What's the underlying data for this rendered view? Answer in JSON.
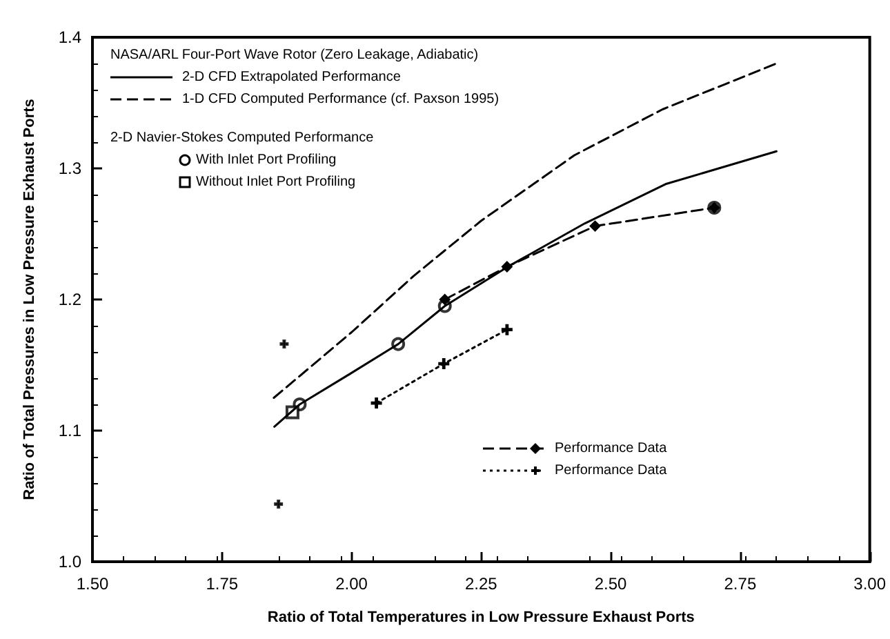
{
  "chart_data": {
    "type": "line",
    "xlabel": "Ratio of Total Temperatures in Low Pressure Exhaust Ports",
    "ylabel": "Ratio of Total Pressures in Low Pressure Exhaust Ports",
    "legend_title": "NASA/ARL Four-Port Wave Rotor (Zero Leakage, Adiabatic)",
    "annotations": [
      "2-D Navier-Stokes Computed Performance"
    ],
    "xlim": [
      1.5,
      3.0
    ],
    "xticks": [
      {
        "value": 1.5,
        "label": "1.50"
      },
      1.75,
      {
        "value": 2,
        "label": "2.00"
      },
      2.25,
      {
        "value": 2.5,
        "label": "2.50"
      },
      2.75,
      {
        "value": 3,
        "label": "3.00"
      }
    ],
    "ylim": [
      1.0,
      1.4
    ],
    "yticks": [
      {
        "value": 1,
        "label": "1.0"
      },
      1.1,
      1.2,
      1.3,
      1.4
    ],
    "grid": false,
    "legend": "top left",
    "series": [
      {
        "name": "2-D CFD Extrapolated Performance",
        "color": "#000000",
        "line_style": "solid",
        "x": [
          1.851,
          1.9,
          2.0,
          2.09,
          2.18,
          2.306,
          2.45,
          2.606,
          2.82
        ],
        "values": [
          1.103,
          1.12,
          1.144,
          1.166,
          1.195,
          1.226,
          1.258,
          1.288,
          1.313
        ]
      },
      {
        "name": "1-D CFD Computed Performance (cf. Paxson 1995)",
        "color": "#000000",
        "line_style": "dashed",
        "x": [
          1.85,
          2.0,
          2.12,
          2.25,
          2.43,
          2.6,
          2.82
        ],
        "values": [
          1.125,
          1.175,
          1.218,
          1.26,
          1.31,
          1.345,
          1.38
        ]
      },
      {
        "name": "With Inlet Port Profiling",
        "type": "scatter",
        "color": "#000000",
        "marker": "circle",
        "x": [
          1.9,
          2.09,
          2.18,
          2.7
        ],
        "values": [
          1.12,
          1.166,
          1.195,
          1.27
        ]
      },
      {
        "name": "Without Inlet Port Profiling",
        "type": "scatter",
        "color": "#000000",
        "marker": "square",
        "x": [
          1.886
        ],
        "values": [
          1.114
        ]
      },
      {
        "name": "Performance Data",
        "color": "#000000",
        "line_style": "dashed",
        "marker": "diamond",
        "x": [
          2.18,
          2.3,
          2.47,
          2.7
        ],
        "values": [
          1.2,
          1.225,
          1.256,
          1.27
        ]
      },
      {
        "name": "Performance Data",
        "color": "#000000",
        "line_style": "dotted",
        "marker": "cross",
        "x": [
          2.048,
          2.178,
          2.3
        ],
        "values": [
          1.121,
          1.151,
          1.177
        ]
      },
      {
        "type": "scatter",
        "color": "#000000",
        "marker": "cross",
        "x": [
          1.87,
          1.859
        ],
        "values": [
          1.166,
          1.044
        ]
      }
    ]
  }
}
